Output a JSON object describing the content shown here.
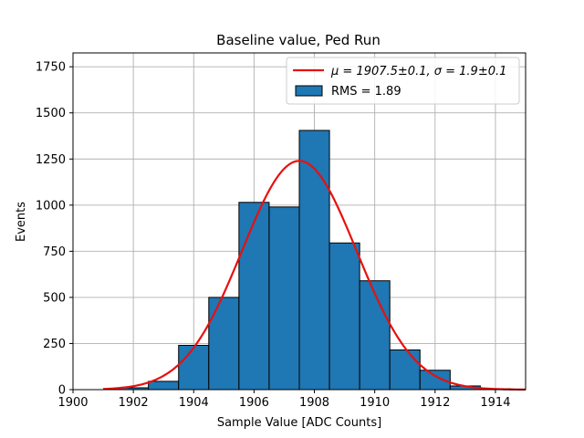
{
  "chart_data": {
    "type": "bar",
    "title": "Baseline value, Ped Run",
    "xlabel": "Sample Value [ADC Counts]",
    "ylabel": "Events",
    "xlim": [
      1900,
      1915
    ],
    "ylim": [
      0,
      1825
    ],
    "xticks": [
      1900,
      1902,
      1904,
      1906,
      1908,
      1910,
      1912,
      1914
    ],
    "yticks": [
      0,
      250,
      500,
      750,
      1000,
      1250,
      1500,
      1750
    ],
    "grid": true,
    "legend_position": "top-right",
    "bin_width": 1,
    "bins": [
      {
        "start": 1901.5,
        "count": 10
      },
      {
        "start": 1902.5,
        "count": 45
      },
      {
        "start": 1903.5,
        "count": 240
      },
      {
        "start": 1904.5,
        "count": 500
      },
      {
        "start": 1905.5,
        "count": 1015
      },
      {
        "start": 1906.5,
        "count": 990
      },
      {
        "start": 1907.5,
        "count": 1405
      },
      {
        "start": 1908.5,
        "count": 795
      },
      {
        "start": 1909.5,
        "count": 590
      },
      {
        "start": 1910.5,
        "count": 215
      },
      {
        "start": 1911.5,
        "count": 105
      },
      {
        "start": 1912.5,
        "count": 20
      },
      {
        "start": 1913.5,
        "count": 5
      }
    ],
    "fit": {
      "mu": 1907.5,
      "sigma": 1.9,
      "amplitude": 1240,
      "x_range": [
        1901,
        1915
      ]
    },
    "series": [
      {
        "name": "fit",
        "legend_text_prefix": "μ = 1907.5±0.1, ",
        "legend_text_suffix": "σ = 1.9±0.1",
        "color": "#e8100e"
      },
      {
        "name": "histogram",
        "legend_text": "RMS = 1.89",
        "color": "#1f77b4"
      }
    ]
  }
}
